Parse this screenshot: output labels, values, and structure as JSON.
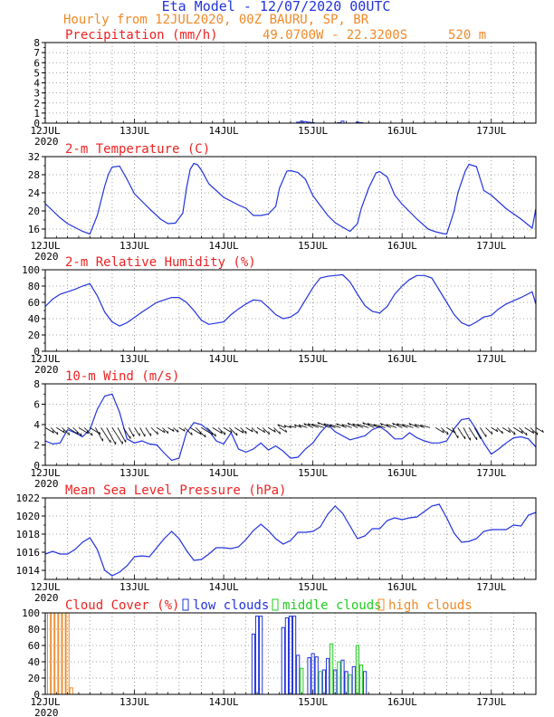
{
  "header": {
    "title": "Eta Model - 12/07/2020 00UTC",
    "subtitle": "Hourly from 12JUL2020, 00Z  BAURU, SP, BR",
    "coords": "49.0700W - 22.3200S",
    "elevation": "520  m"
  },
  "colors": {
    "title": "#2233dd",
    "orange": "#f08a28",
    "red": "#ee2222",
    "blue": "#2233dd",
    "green": "#22cc22",
    "grid": "#888888",
    "axis": "#000000"
  },
  "x_axis": {
    "ticks": [
      "12JUL",
      "13JUL",
      "14JUL",
      "15JUL",
      "16JUL",
      "17JUL"
    ],
    "year": "2020",
    "range_hours": [
      0,
      132
    ]
  },
  "chart_data": [
    {
      "type": "bar",
      "title": "Precipitation (mm/h)",
      "ylim": [
        0,
        8
      ],
      "yticks": [
        "0",
        "1",
        "2",
        "3",
        "4",
        "5",
        "6",
        "7",
        "8"
      ],
      "x": [
        68,
        69,
        70,
        71,
        72,
        79,
        80,
        84,
        85
      ],
      "values": [
        0.1,
        0.2,
        0.15,
        0.1,
        0.05,
        0.05,
        0.2,
        0.1,
        0.05
      ]
    },
    {
      "type": "line",
      "title": "2-m Temperature (C)",
      "ylim": [
        14,
        32
      ],
      "yticks": [
        "16",
        "20",
        "24",
        "28",
        "32"
      ],
      "x": [
        0,
        4,
        6,
        10,
        12,
        14,
        16,
        17,
        18,
        20,
        22,
        24,
        28,
        31,
        33,
        35,
        37,
        38,
        39,
        40,
        41,
        42,
        44,
        48,
        52,
        54,
        56,
        58,
        60,
        62,
        63,
        65,
        66,
        68,
        70,
        72,
        74,
        76,
        78,
        80,
        82,
        84,
        85,
        87,
        89,
        90,
        92,
        94,
        96,
        100,
        103,
        105,
        107,
        108,
        110,
        111,
        113,
        114,
        116,
        118,
        120,
        124,
        128,
        131,
        132
      ],
      "values": [
        21.6,
        18.5,
        17.2,
        15.5,
        14.9,
        19,
        25.5,
        28.1,
        29.7,
        29.9,
        27,
        23.8,
        20.5,
        18.2,
        17.2,
        17.3,
        19.5,
        25,
        29.2,
        30.5,
        30.2,
        29,
        26,
        23,
        21.3,
        20.6,
        19,
        19,
        19.3,
        21,
        25,
        28.8,
        28.9,
        28.5,
        27,
        23.4,
        21.2,
        19,
        17.4,
        16.4,
        15.5,
        17.2,
        20.5,
        25,
        28.4,
        28.7,
        27.5,
        23.5,
        21.5,
        18.2,
        16,
        15.4,
        15,
        14.9,
        20,
        24,
        28.8,
        30.3,
        29.8,
        24.5,
        23.5,
        20.5,
        18.2,
        16.2,
        20.5
      ]
    },
    {
      "type": "line",
      "title": "2-m Relative Humidity (%)",
      "ylim": [
        0,
        100
      ],
      "yticks": [
        "0",
        "20",
        "40",
        "60",
        "80",
        "100"
      ],
      "x": [
        0,
        2,
        4,
        8,
        10,
        12,
        14,
        16,
        18,
        20,
        22,
        26,
        30,
        34,
        36,
        38,
        40,
        42,
        44,
        48,
        50,
        52,
        54,
        56,
        58,
        60,
        62,
        64,
        66,
        68,
        70,
        72,
        74,
        76,
        78,
        80,
        82,
        84,
        86,
        88,
        90,
        92,
        94,
        96,
        98,
        100,
        102,
        104,
        108,
        110,
        112,
        114,
        116,
        118,
        120,
        122,
        124,
        128,
        131,
        132
      ],
      "values": [
        55,
        64,
        70,
        76,
        80,
        83,
        68,
        48,
        36,
        31,
        35,
        48,
        60,
        66,
        66,
        60,
        50,
        38,
        33,
        36,
        45,
        52,
        58,
        63,
        62,
        54,
        45,
        40,
        42,
        48,
        63,
        78,
        90,
        92,
        93,
        94,
        85,
        70,
        56,
        49,
        47,
        55,
        70,
        80,
        88,
        93,
        93,
        90,
        60,
        45,
        35,
        31,
        36,
        42,
        44,
        52,
        58,
        66,
        73,
        58
      ]
    },
    {
      "type": "line",
      "title": "10-m Wind (m/s)",
      "ylim": [
        0,
        8
      ],
      "yticks": [
        "0",
        "2",
        "4",
        "6",
        "8"
      ],
      "x": [
        0,
        2,
        4,
        6,
        8,
        10,
        12,
        14,
        16,
        18,
        20,
        22,
        24,
        26,
        28,
        30,
        32,
        34,
        36,
        38,
        40,
        42,
        44,
        46,
        48,
        50,
        52,
        54,
        56,
        58,
        60,
        62,
        64,
        66,
        68,
        70,
        72,
        74,
        76,
        78,
        80,
        82,
        84,
        86,
        88,
        90,
        92,
        94,
        96,
        98,
        100,
        102,
        104,
        106,
        108,
        110,
        112,
        114,
        116,
        118,
        120,
        122,
        124,
        126,
        128,
        130,
        132
      ],
      "values": [
        2.4,
        2.1,
        2.2,
        3.5,
        3.2,
        2.8,
        3.5,
        5.5,
        6.8,
        7,
        5.2,
        2.6,
        2.2,
        2.4,
        2.1,
        2,
        1.2,
        0.5,
        0.7,
        3.2,
        4.2,
        4,
        3.4,
        2.4,
        2.1,
        3.2,
        1.6,
        1.3,
        1.6,
        2.2,
        1.5,
        1.9,
        1.4,
        0.7,
        0.8,
        1.6,
        2.2,
        3.2,
        4,
        3.3,
        2.9,
        2.5,
        2.7,
        2.9,
        3.5,
        3.8,
        3.3,
        2.6,
        2.6,
        3.2,
        2.7,
        2.4,
        2.2,
        2.2,
        2.4,
        3.6,
        4.5,
        4.6,
        3.5,
        2.2,
        1.1,
        1.6,
        2.2,
        2.7,
        2.8,
        2.6,
        1.8
      ]
    },
    {
      "type": "line",
      "title": "Mean Sea Level Pressure (hPa)",
      "ylim": [
        1013,
        1022
      ],
      "yticks": [
        "1014",
        "1016",
        "1018",
        "1020",
        "1022"
      ],
      "x": [
        0,
        2,
        4,
        6,
        8,
        10,
        12,
        14,
        16,
        18,
        20,
        22,
        24,
        26,
        28,
        30,
        32,
        34,
        36,
        38,
        40,
        42,
        44,
        46,
        48,
        50,
        52,
        54,
        56,
        58,
        60,
        62,
        64,
        66,
        68,
        70,
        72,
        74,
        76,
        78,
        80,
        82,
        84,
        86,
        88,
        90,
        92,
        94,
        96,
        98,
        100,
        102,
        104,
        106,
        108,
        110,
        112,
        114,
        116,
        118,
        120,
        122,
        124,
        126,
        128,
        130,
        132
      ],
      "values": [
        1015.8,
        1016.1,
        1015.8,
        1015.8,
        1016.3,
        1017.1,
        1017.6,
        1016.3,
        1014,
        1013.4,
        1013.8,
        1014.5,
        1015.5,
        1015.6,
        1015.5,
        1016.5,
        1017.5,
        1018.3,
        1017.5,
        1016.2,
        1015.1,
        1015.2,
        1015.8,
        1016.5,
        1016.5,
        1016.4,
        1016.6,
        1017.4,
        1018.4,
        1019.1,
        1018.4,
        1017.5,
        1016.9,
        1017.3,
        1018.2,
        1018.2,
        1018.3,
        1018.8,
        1020.2,
        1021.1,
        1020.3,
        1018.9,
        1017.5,
        1017.8,
        1018.6,
        1018.6,
        1019.5,
        1019.8,
        1019.6,
        1019.8,
        1019.9,
        1020.5,
        1021.1,
        1021.3,
        1019.8,
        1018.1,
        1017.1,
        1017.2,
        1017.5,
        1018.3,
        1018.5,
        1018.5,
        1018.5,
        1019,
        1018.9,
        1020.1,
        1020.4
      ]
    },
    {
      "type": "bar",
      "title": "Cloud Cover (%)",
      "legend": [
        "low clouds",
        "middle clouds",
        "high clouds"
      ],
      "ylim": [
        0,
        100
      ],
      "yticks": [
        "0",
        "20",
        "40",
        "60",
        "80",
        "100"
      ],
      "series": [
        {
          "name": "low clouds",
          "x": [
            56,
            57,
            58,
            64,
            65,
            66,
            67,
            68,
            71,
            72,
            73,
            75,
            76,
            78,
            80,
            81,
            83,
            86
          ],
          "values": [
            74,
            96,
            96,
            82,
            94,
            96,
            96,
            48,
            45,
            50,
            46,
            30,
            44,
            30,
            42,
            28,
            34,
            28
          ]
        },
        {
          "name": "middle clouds",
          "x": [
            69,
            74,
            77,
            79,
            82,
            84,
            85
          ],
          "values": [
            32,
            28,
            62,
            40,
            24,
            60,
            36
          ]
        },
        {
          "name": "high clouds",
          "x": [
            1,
            2,
            3,
            4,
            5,
            6,
            7
          ],
          "values": [
            100,
            100,
            100,
            100,
            100,
            100,
            8
          ]
        }
      ]
    }
  ]
}
